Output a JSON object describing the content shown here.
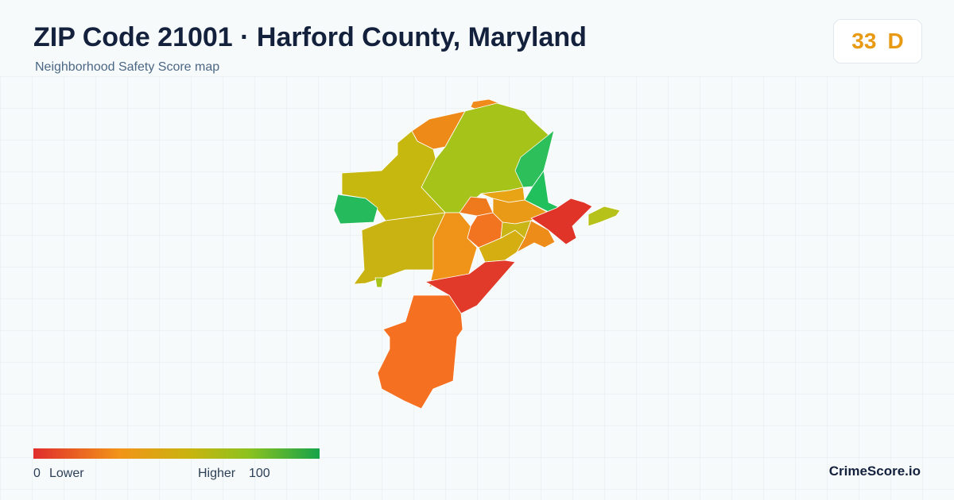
{
  "header": {
    "title": "ZIP Code 21001 · Harford County, Maryland",
    "subtitle": "Neighborhood Safety Score map"
  },
  "score": {
    "value": 33,
    "grade": "D"
  },
  "legend": {
    "min": 0,
    "min_label": "Lower",
    "max_label": "Higher",
    "max": 100
  },
  "footer": {
    "brand": "CrimeScore.io"
  }
}
